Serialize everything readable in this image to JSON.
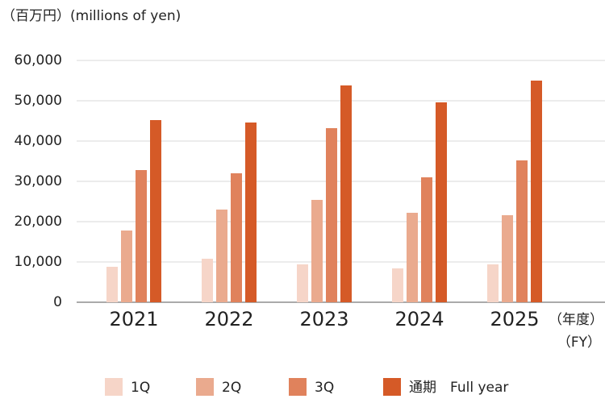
{
  "chart_data": {
    "type": "bar",
    "y_axis_label": "（百万円）(millions of yen)",
    "x_axis_label": [
      "（年度）",
      "（FY）"
    ],
    "categories": [
      "2021",
      "2022",
      "2023",
      "2024",
      "2025"
    ],
    "series": [
      {
        "name": "1Q",
        "color": "#f6d5c8",
        "values": [
          8800,
          10800,
          9400,
          8400,
          9400
        ]
      },
      {
        "name": "2Q",
        "color": "#eaaa8e",
        "values": [
          17800,
          23000,
          25400,
          22200,
          21600
        ]
      },
      {
        "name": "3Q",
        "color": "#e0825c",
        "values": [
          32800,
          32000,
          43200,
          31000,
          35200
        ]
      },
      {
        "name": "通期　Full year",
        "color": "#d55a27",
        "values": [
          45200,
          44600,
          53800,
          49600,
          55000
        ]
      }
    ],
    "ylim": [
      0,
      60000
    ],
    "yticks": [
      0,
      {
        "value": 10000,
        "label": "10,000"
      },
      {
        "value": 20000,
        "label": "20,000"
      },
      {
        "value": 30000,
        "label": "30,000"
      },
      {
        "value": 40000,
        "label": "40,000"
      },
      {
        "value": 50000,
        "label": "50,000"
      },
      {
        "value": 60000,
        "label": "60,000"
      }
    ],
    "grid": true,
    "legend": "bottom"
  }
}
